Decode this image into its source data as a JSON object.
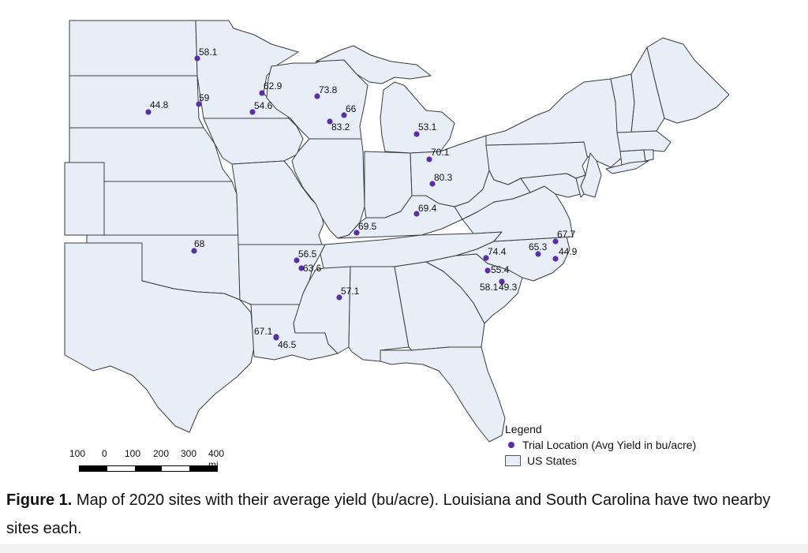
{
  "map": {
    "sites": [
      {
        "label": "58.1"
      },
      {
        "label": "44.8"
      },
      {
        "label": "59"
      },
      {
        "label": "62.9"
      },
      {
        "label": "54.6"
      },
      {
        "label": "73.8"
      },
      {
        "label": "66"
      },
      {
        "label": "83.2"
      },
      {
        "label": "53.1"
      },
      {
        "label": "70.1"
      },
      {
        "label": "80.3"
      },
      {
        "label": "69.4"
      },
      {
        "label": "69.5"
      },
      {
        "label": "68"
      },
      {
        "label": "56.5"
      },
      {
        "label": "63.6"
      },
      {
        "label": "57.1"
      },
      {
        "label": "67.1"
      },
      {
        "label": "46.5"
      },
      {
        "label": "74.4"
      },
      {
        "label": "65.3"
      },
      {
        "label": "67.7"
      },
      {
        "label": "44.9"
      },
      {
        "label": "55.4"
      },
      {
        "label": "58.1"
      },
      {
        "label": "49.3"
      }
    ],
    "colors": {
      "state_fill": "#e8eef8",
      "border": "#3a3a3a",
      "site_dot": "#5b2fa3"
    }
  },
  "scalebar": {
    "labels": [
      "100",
      "0",
      "100",
      "200",
      "300",
      "400 mi"
    ]
  },
  "legend": {
    "title": "Legend",
    "site_label": "Trial Location (Avg Yield in bu/acre)",
    "states_label": "US States"
  },
  "caption": {
    "figure": "Figure 1.",
    "text": " Map of 2020 sites with their average yield (bu/acre). Louisiana and South Carolina have two nearby sites each."
  }
}
